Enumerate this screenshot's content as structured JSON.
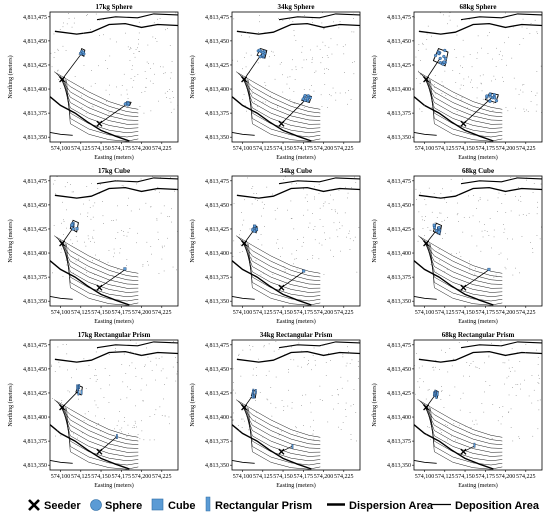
{
  "figure": {
    "background": "#ffffff",
    "sample_fill": "#5b9bd5",
    "sample_stroke": "#1f3e68"
  },
  "chart_data": [
    {
      "type": "scatter",
      "title": "17kg Sphere",
      "xlabel": "Easting (meters)",
      "ylabel": "Northing (meters)",
      "xlim": [
        574087,
        574245
      ],
      "ylim": [
        4813345,
        4813480
      ],
      "xticks": [
        "574,100",
        "574,125",
        "574,150",
        "574,175",
        "574,200",
        "574,225"
      ],
      "yticks": [
        "4,813,475",
        "4,813,450",
        "4,813,425",
        "4,813,400",
        "4,813,375",
        "4,813,350"
      ],
      "seeders": [
        [
          574102,
          4813410
        ],
        [
          574148,
          4813364
        ]
      ],
      "clusters": [
        {
          "seeder": 0,
          "center": [
            574127,
            4813438
          ],
          "spread": [
            3,
            4
          ],
          "n": 6
        },
        {
          "seeder": 1,
          "center": [
            574183,
            4813385
          ],
          "spread": [
            4,
            2
          ],
          "n": 6
        }
      ]
    },
    {
      "type": "scatter",
      "title": "34kg Sphere",
      "xlabel": "Easting (meters)",
      "ylabel": "Northing (meters)",
      "xlim": [
        574087,
        574245
      ],
      "ylim": [
        4813345,
        4813480
      ],
      "xticks": [
        "574,100",
        "574,125",
        "574,150",
        "574,175",
        "574,200",
        "574,225"
      ],
      "yticks": [
        "4,813,475",
        "4,813,450",
        "4,813,425",
        "4,813,400",
        "4,813,375",
        "4,813,350"
      ],
      "seeders": [
        [
          574102,
          4813410
        ],
        [
          574148,
          4813364
        ]
      ],
      "clusters": [
        {
          "seeder": 0,
          "center": [
            574124,
            4813437
          ],
          "spread": [
            6,
            5
          ],
          "n": 10
        },
        {
          "seeder": 1,
          "center": [
            574179,
            4813390
          ],
          "spread": [
            6,
            4
          ],
          "n": 10
        }
      ]
    },
    {
      "type": "scatter",
      "title": "68kg Sphere",
      "xlabel": "Easting (meters)",
      "ylabel": "Northing (meters)",
      "xlim": [
        574087,
        574245
      ],
      "ylim": [
        4813345,
        4813480
      ],
      "xticks": [
        "574,100",
        "574,125",
        "574,150",
        "574,175",
        "574,200",
        "574,225"
      ],
      "yticks": [
        "4,813,475",
        "4,813,450",
        "4,813,425",
        "4,813,400",
        "4,813,375",
        "4,813,350"
      ],
      "seeders": [
        [
          574102,
          4813410
        ],
        [
          574148,
          4813364
        ]
      ],
      "clusters": [
        {
          "seeder": 0,
          "center": [
            574120,
            4813433
          ],
          "spread": [
            9,
            9
          ],
          "n": 14
        },
        {
          "seeder": 1,
          "center": [
            574183,
            4813391
          ],
          "spread": [
            8,
            5
          ],
          "n": 12
        }
      ]
    },
    {
      "type": "scatter",
      "title": "17kg Cube",
      "xlabel": "Easting (meters)",
      "ylabel": "Northing (meters)",
      "xlim": [
        574087,
        574245
      ],
      "ylim": [
        4813345,
        4813480
      ],
      "xticks": [
        "574,100",
        "574,125",
        "574,150",
        "574,175",
        "574,200",
        "574,225"
      ],
      "yticks": [
        "4,813,475",
        "4,813,450",
        "4,813,425",
        "4,813,400",
        "4,813,375",
        "4,813,350"
      ],
      "seeders": [
        [
          574102,
          4813410
        ],
        [
          574148,
          4813364
        ]
      ],
      "clusters": [
        {
          "seeder": 0,
          "center": [
            574117,
            4813428
          ],
          "spread": [
            5,
            6
          ],
          "n": 7
        },
        {
          "seeder": 1,
          "center": [
            574180,
            4813383
          ],
          "spread": [
            2,
            1
          ],
          "n": 1
        }
      ]
    },
    {
      "type": "scatter",
      "title": "34kg Cube",
      "xlabel": "Easting (meters)",
      "ylabel": "Northing (meters)",
      "xlim": [
        574087,
        574245
      ],
      "ylim": [
        4813345,
        4813480
      ],
      "xticks": [
        "574,100",
        "574,125",
        "574,150",
        "574,175",
        "574,200",
        "574,225"
      ],
      "yticks": [
        "4,813,475",
        "4,813,450",
        "4,813,425",
        "4,813,400",
        "4,813,375",
        "4,813,350"
      ],
      "seeders": [
        [
          574102,
          4813410
        ],
        [
          574148,
          4813364
        ]
      ],
      "clusters": [
        {
          "seeder": 0,
          "center": [
            574115,
            4813425
          ],
          "spread": [
            3,
            4
          ],
          "n": 7
        },
        {
          "seeder": 1,
          "center": [
            574176,
            4813381
          ],
          "spread": [
            2,
            1
          ],
          "n": 1
        }
      ]
    },
    {
      "type": "scatter",
      "title": "68kg Cube",
      "xlabel": "Easting (meters)",
      "ylabel": "Northing (meters)",
      "xlim": [
        574087,
        574245
      ],
      "ylim": [
        4813345,
        4813480
      ],
      "xticks": [
        "574,100",
        "574,125",
        "574,150",
        "574,175",
        "574,200",
        "574,225"
      ],
      "yticks": [
        "4,813,475",
        "4,813,450",
        "4,813,425",
        "4,813,400",
        "4,813,375",
        "4,813,350"
      ],
      "seeders": [
        [
          574102,
          4813410
        ],
        [
          574148,
          4813364
        ]
      ],
      "clusters": [
        {
          "seeder": 0,
          "center": [
            574116,
            4813425
          ],
          "spread": [
            5,
            6
          ],
          "n": 8
        },
        {
          "seeder": 1,
          "center": [
            574180,
            4813383
          ],
          "spread": [
            2,
            1
          ],
          "n": 1
        }
      ]
    },
    {
      "type": "scatter",
      "title": "17kg Rectangular Prism",
      "xlabel": "Easting (meters)",
      "ylabel": "Northing (meters)",
      "xlim": [
        574087,
        574245
      ],
      "ylim": [
        4813345,
        4813480
      ],
      "xticks": [
        "574,100",
        "574,125",
        "574,150",
        "574,175",
        "574,200",
        "574,225"
      ],
      "yticks": [
        "4,813,475",
        "4,813,450",
        "4,813,425",
        "4,813,400",
        "4,813,375",
        "4,813,350"
      ],
      "seeders": [
        [
          574102,
          4813410
        ],
        [
          574148,
          4813364
        ]
      ],
      "clusters": [
        {
          "seeder": 0,
          "center": [
            574123,
            4813428
          ],
          "spread": [
            4,
            5
          ],
          "n": 6
        },
        {
          "seeder": 1,
          "center": [
            574170,
            4813380
          ],
          "spread": [
            2,
            1
          ],
          "n": 1
        }
      ]
    },
    {
      "type": "scatter",
      "title": "34kg Rectangular Prism",
      "xlabel": "Easting (meters)",
      "ylabel": "Northing (meters)",
      "xlim": [
        574087,
        574245
      ],
      "ylim": [
        4813345,
        4813480
      ],
      "xticks": [
        "574,100",
        "574,125",
        "574,150",
        "574,175",
        "574,200",
        "574,225"
      ],
      "yticks": [
        "4,813,475",
        "4,813,450",
        "4,813,425",
        "4,813,400",
        "4,813,375",
        "4,813,350"
      ],
      "seeders": [
        [
          574102,
          4813410
        ],
        [
          574148,
          4813364
        ]
      ],
      "clusters": [
        {
          "seeder": 0,
          "center": [
            574114,
            4813424
          ],
          "spread": [
            3,
            4
          ],
          "n": 6
        },
        {
          "seeder": 1,
          "center": [
            574162,
            4813370
          ],
          "spread": [
            2,
            1
          ],
          "n": 1
        }
      ]
    },
    {
      "type": "scatter",
      "title": "68kg Rectangular Prism",
      "xlabel": "Easting (meters)",
      "ylabel": "Northing (meters)",
      "xlim": [
        574087,
        574245
      ],
      "ylim": [
        4813345,
        4813480
      ],
      "xticks": [
        "574,100",
        "574,125",
        "574,150",
        "574,175",
        "574,200",
        "574,225"
      ],
      "yticks": [
        "4,813,475",
        "4,813,450",
        "4,813,425",
        "4,813,400",
        "4,813,375",
        "4,813,350"
      ],
      "seeders": [
        [
          574102,
          4813410
        ],
        [
          574148,
          4813364
        ]
      ],
      "clusters": [
        {
          "seeder": 0,
          "center": [
            574114,
            4813424
          ],
          "spread": [
            3,
            4
          ],
          "n": 6
        },
        {
          "seeder": 1,
          "center": [
            574162,
            4813370
          ],
          "spread": [
            2,
            1
          ],
          "n": 1
        }
      ]
    }
  ],
  "legend": {
    "items": [
      {
        "key": "seeder",
        "label": "Seeder",
        "icon": "x-mark-icon"
      },
      {
        "key": "sphere",
        "label": "Sphere",
        "icon": "circle-icon"
      },
      {
        "key": "cube",
        "label": "Cube",
        "icon": "square-icon"
      },
      {
        "key": "prism",
        "label": "Rectangular Prism",
        "icon": "bar-icon"
      },
      {
        "key": "dispersion",
        "label": "Dispersion Area",
        "icon": "thick-line-icon"
      },
      {
        "key": "deposition",
        "label": "Deposition Area",
        "icon": "thin-line-icon"
      }
    ]
  }
}
